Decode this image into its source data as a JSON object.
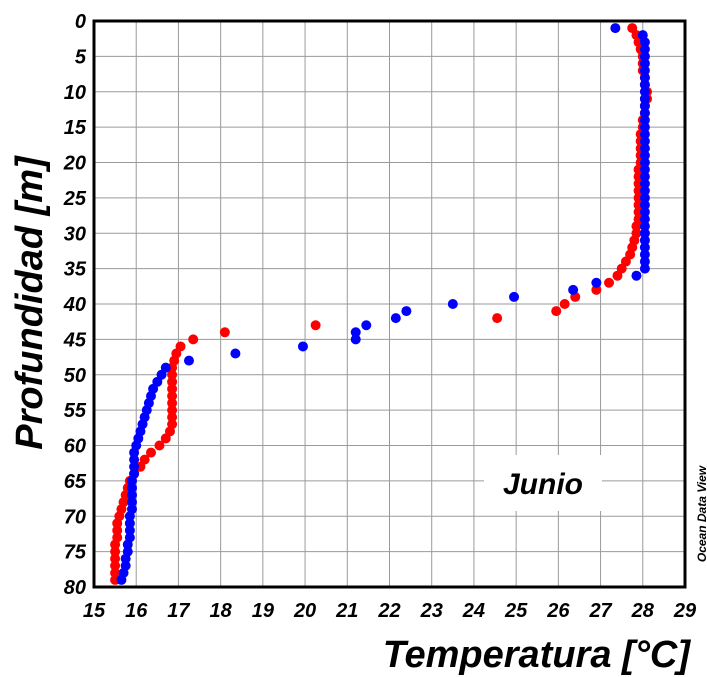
{
  "chart_data": {
    "type": "scatter",
    "title": "",
    "xlabel": "Temperatura [°C]",
    "ylabel": "Profundidad [m]",
    "xlim": [
      15,
      29
    ],
    "ylim": [
      80,
      0
    ],
    "y_inverted": true,
    "grid": true,
    "x_ticks": [
      "15",
      "16",
      "17",
      "18",
      "19",
      "20",
      "21",
      "22",
      "23",
      "24",
      "25",
      "26",
      "27",
      "28",
      "29"
    ],
    "y_ticks": [
      "0",
      "5",
      "10",
      "15",
      "20",
      "25",
      "30",
      "35",
      "40",
      "45",
      "50",
      "55",
      "60",
      "65",
      "70",
      "75",
      "80"
    ],
    "annotation": "Junio",
    "watermark": "Ocean Data View",
    "series": [
      {
        "color": "#ff0000",
        "points": [
          [
            27.75,
            1
          ],
          [
            27.85,
            2
          ],
          [
            27.9,
            3
          ],
          [
            27.95,
            4
          ],
          [
            28.0,
            5
          ],
          [
            28.0,
            6
          ],
          [
            28.0,
            7
          ],
          [
            28.05,
            8
          ],
          [
            28.05,
            9
          ],
          [
            28.1,
            10
          ],
          [
            28.1,
            11
          ],
          [
            28.05,
            12
          ],
          [
            28.05,
            13
          ],
          [
            28.0,
            14
          ],
          [
            28.0,
            15
          ],
          [
            27.95,
            16
          ],
          [
            27.95,
            17
          ],
          [
            27.95,
            18
          ],
          [
            27.95,
            19
          ],
          [
            27.95,
            20
          ],
          [
            27.9,
            21
          ],
          [
            27.9,
            22
          ],
          [
            27.9,
            23
          ],
          [
            27.9,
            24
          ],
          [
            27.9,
            25
          ],
          [
            27.9,
            26
          ],
          [
            27.9,
            27
          ],
          [
            27.9,
            28
          ],
          [
            27.85,
            29
          ],
          [
            27.85,
            30
          ],
          [
            27.8,
            31
          ],
          [
            27.75,
            32
          ],
          [
            27.7,
            33
          ],
          [
            27.6,
            34
          ],
          [
            27.5,
            35
          ],
          [
            27.4,
            36
          ],
          [
            27.2,
            37
          ],
          [
            26.9,
            38
          ],
          [
            26.4,
            39
          ],
          [
            26.15,
            40
          ],
          [
            25.95,
            41
          ],
          [
            24.55,
            42
          ],
          [
            20.25,
            43
          ],
          [
            18.1,
            44
          ],
          [
            17.35,
            45
          ],
          [
            17.05,
            46
          ],
          [
            16.95,
            47
          ],
          [
            16.9,
            48
          ],
          [
            16.85,
            49
          ],
          [
            16.85,
            50
          ],
          [
            16.85,
            51
          ],
          [
            16.85,
            52
          ],
          [
            16.85,
            53
          ],
          [
            16.85,
            54
          ],
          [
            16.85,
            55
          ],
          [
            16.85,
            56
          ],
          [
            16.85,
            57
          ],
          [
            16.8,
            58
          ],
          [
            16.7,
            59
          ],
          [
            16.55,
            60
          ],
          [
            16.35,
            61
          ],
          [
            16.2,
            62
          ],
          [
            16.1,
            63
          ],
          [
            15.95,
            64
          ],
          [
            15.85,
            65
          ],
          [
            15.8,
            66
          ],
          [
            15.75,
            67
          ],
          [
            15.7,
            68
          ],
          [
            15.65,
            69
          ],
          [
            15.6,
            70
          ],
          [
            15.55,
            71
          ],
          [
            15.55,
            72
          ],
          [
            15.55,
            73
          ],
          [
            15.5,
            74
          ],
          [
            15.5,
            75
          ],
          [
            15.5,
            76
          ],
          [
            15.5,
            77
          ],
          [
            15.5,
            78
          ],
          [
            15.5,
            79
          ]
        ]
      },
      {
        "color": "#0000ff",
        "points": [
          [
            27.35,
            1
          ],
          [
            28.0,
            2
          ],
          [
            28.05,
            3
          ],
          [
            28.05,
            4
          ],
          [
            28.05,
            5
          ],
          [
            28.05,
            6
          ],
          [
            28.05,
            7
          ],
          [
            28.05,
            8
          ],
          [
            28.05,
            9
          ],
          [
            28.05,
            10
          ],
          [
            28.05,
            11
          ],
          [
            28.05,
            12
          ],
          [
            28.05,
            13
          ],
          [
            28.05,
            14
          ],
          [
            28.05,
            15
          ],
          [
            28.05,
            16
          ],
          [
            28.05,
            17
          ],
          [
            28.05,
            18
          ],
          [
            28.05,
            19
          ],
          [
            28.05,
            20
          ],
          [
            28.05,
            21
          ],
          [
            28.05,
            22
          ],
          [
            28.05,
            23
          ],
          [
            28.05,
            24
          ],
          [
            28.05,
            25
          ],
          [
            28.05,
            26
          ],
          [
            28.05,
            27
          ],
          [
            28.05,
            28
          ],
          [
            28.05,
            29
          ],
          [
            28.05,
            30
          ],
          [
            28.05,
            31
          ],
          [
            28.05,
            32
          ],
          [
            28.05,
            33
          ],
          [
            28.05,
            34
          ],
          [
            28.05,
            35
          ],
          [
            27.85,
            36
          ],
          [
            26.9,
            37
          ],
          [
            26.35,
            38
          ],
          [
            24.95,
            39
          ],
          [
            23.5,
            40
          ],
          [
            22.4,
            41
          ],
          [
            22.15,
            42
          ],
          [
            21.45,
            43
          ],
          [
            21.2,
            44
          ],
          [
            21.2,
            45
          ],
          [
            19.95,
            46
          ],
          [
            18.35,
            47
          ],
          [
            17.25,
            48
          ],
          [
            16.7,
            49
          ],
          [
            16.6,
            50
          ],
          [
            16.5,
            51
          ],
          [
            16.4,
            52
          ],
          [
            16.35,
            53
          ],
          [
            16.3,
            54
          ],
          [
            16.25,
            55
          ],
          [
            16.2,
            56
          ],
          [
            16.15,
            57
          ],
          [
            16.1,
            58
          ],
          [
            16.05,
            59
          ],
          [
            16.0,
            60
          ],
          [
            15.95,
            61
          ],
          [
            15.95,
            62
          ],
          [
            15.95,
            63
          ],
          [
            15.95,
            64
          ],
          [
            15.9,
            65
          ],
          [
            15.9,
            66
          ],
          [
            15.9,
            67
          ],
          [
            15.9,
            68
          ],
          [
            15.9,
            69
          ],
          [
            15.85,
            70
          ],
          [
            15.85,
            71
          ],
          [
            15.85,
            72
          ],
          [
            15.85,
            73
          ],
          [
            15.8,
            74
          ],
          [
            15.8,
            75
          ],
          [
            15.75,
            76
          ],
          [
            15.75,
            77
          ],
          [
            15.7,
            78
          ],
          [
            15.65,
            79
          ]
        ]
      }
    ]
  }
}
